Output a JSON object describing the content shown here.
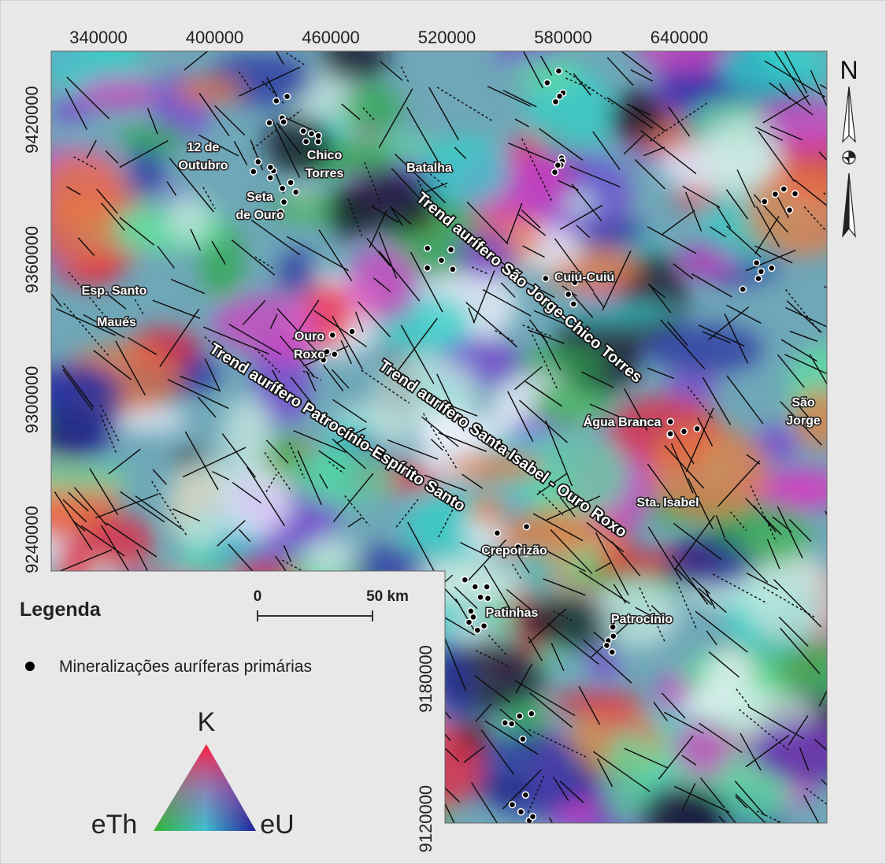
{
  "map": {
    "x_ticks": [
      "340000",
      "400000",
      "460000",
      "520000",
      "580000",
      "640000"
    ],
    "y_ticks": [
      "9420000",
      "9360000",
      "9300000",
      "9240000"
    ],
    "y_ticks_inner": [
      "9180000",
      "9120000"
    ],
    "north": "N",
    "places": [
      {
        "lines": [
          "12 de",
          "Outubro"
        ]
      },
      {
        "lines": [
          "Chico",
          "Torres"
        ]
      },
      {
        "lines": [
          "Seta",
          "de Ouro"
        ]
      },
      {
        "lines": [
          "Batalha"
        ]
      },
      {
        "lines": [
          "Esp. Santo"
        ]
      },
      {
        "lines": [
          "Maués"
        ]
      },
      {
        "lines": [
          "Ouro",
          "Roxo"
        ]
      },
      {
        "lines": [
          "Cuiú-Cuiú"
        ]
      },
      {
        "lines": [
          "Água Branca"
        ]
      },
      {
        "lines": [
          "São",
          "Jorge"
        ]
      },
      {
        "lines": [
          "Sta. Isabel"
        ]
      },
      {
        "lines": [
          "Creporizão"
        ]
      },
      {
        "lines": [
          "Patinhas"
        ]
      },
      {
        "lines": [
          "Patrocínio"
        ]
      }
    ],
    "trends": [
      "Trend aurífero São Jorge-Chico Torres",
      "Trend aurífero Santa Isabel - Ouro Roxo",
      "Trend aurífero Patrocínio-Espírito Santo"
    ],
    "legend": {
      "title": "Legenda",
      "deposits": "Mineralizações auríferas primárias",
      "scale_start": "0",
      "scale_end": "50 km",
      "ternary": {
        "top": "K",
        "left": "eTh",
        "right": "eU"
      }
    }
  }
}
